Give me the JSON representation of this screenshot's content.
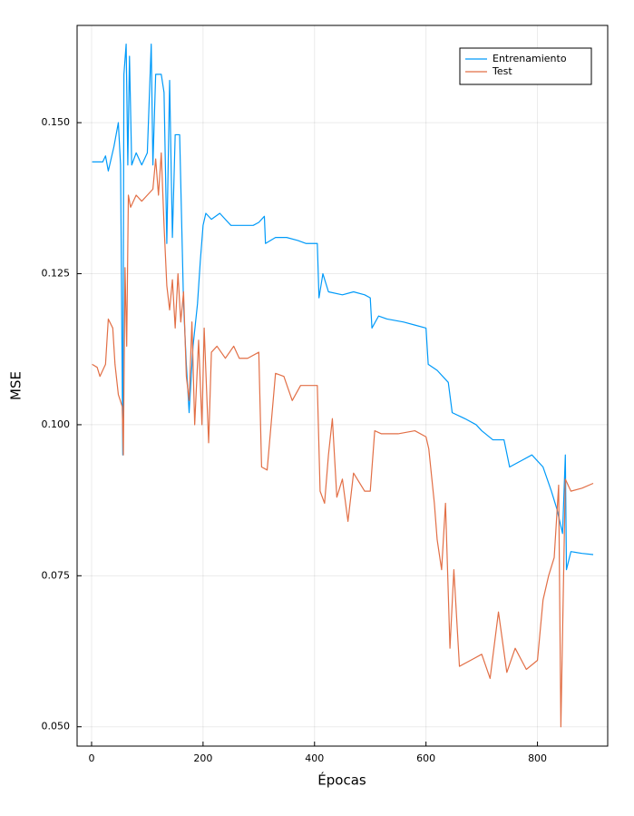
{
  "chart_data": {
    "type": "line",
    "xlabel": "Épocas",
    "ylabel": "MSE",
    "xlim": [
      -26,
      926
    ],
    "ylim": [
      0.0468,
      0.1661
    ],
    "xticks": [
      0,
      200,
      400,
      600,
      800
    ],
    "yticks": [
      {
        "value": 0.05,
        "label": "0.050"
      },
      0.075,
      {
        "value": 0.1,
        "label": "0.100"
      },
      0.125,
      {
        "value": 0.15,
        "label": "0.150"
      }
    ],
    "grid": true,
    "legend": "top-right",
    "series": [
      {
        "name": "Entrenamiento",
        "color": "#009af9",
        "x": [
          1,
          20,
          25,
          30,
          40,
          48,
          52,
          56,
          58,
          62,
          65,
          68,
          72,
          80,
          90,
          100,
          107,
          110,
          115,
          125,
          130,
          135,
          140,
          145,
          150,
          158,
          165,
          170,
          175,
          182,
          190,
          195,
          200,
          205,
          215,
          230,
          250,
          270,
          290,
          300,
          310,
          312,
          330,
          350,
          370,
          385,
          405,
          408,
          415,
          425,
          450,
          470,
          490,
          500,
          503,
          515,
          530,
          560,
          580,
          600,
          604,
          620,
          640,
          647,
          670,
          690,
          700,
          720,
          740,
          750,
          770,
          790,
          810,
          825,
          835,
          845,
          850,
          852,
          860,
          880,
          900
        ],
        "values": [
          0.1435,
          0.1435,
          0.1445,
          0.142,
          0.146,
          0.15,
          0.143,
          0.095,
          0.158,
          0.163,
          0.143,
          0.161,
          0.143,
          0.145,
          0.143,
          0.145,
          0.163,
          0.143,
          0.158,
          0.158,
          0.155,
          0.13,
          0.157,
          0.131,
          0.148,
          0.148,
          0.12,
          0.11,
          0.102,
          0.113,
          0.12,
          0.127,
          0.133,
          0.135,
          0.134,
          0.135,
          0.133,
          0.133,
          0.133,
          0.1335,
          0.1345,
          0.13,
          0.131,
          0.131,
          0.1305,
          0.13,
          0.13,
          0.121,
          0.125,
          0.122,
          0.1215,
          0.122,
          0.1215,
          0.121,
          0.116,
          0.118,
          0.1175,
          0.117,
          0.1165,
          0.116,
          0.11,
          0.109,
          0.107,
          0.102,
          0.101,
          0.1,
          0.099,
          0.0975,
          0.0975,
          0.093,
          0.094,
          0.095,
          0.093,
          0.089,
          0.086,
          0.082,
          0.095,
          0.076,
          0.079,
          0.0787,
          0.0785
        ]
      },
      {
        "name": "Test",
        "color": "#e26f46",
        "x": [
          1,
          10,
          15,
          25,
          30,
          38,
          42,
          48,
          55,
          57,
          60,
          63,
          66,
          70,
          80,
          90,
          100,
          110,
          115,
          120,
          125,
          130,
          135,
          140,
          145,
          150,
          155,
          160,
          165,
          170,
          175,
          180,
          185,
          192,
          198,
          202,
          210,
          215,
          225,
          240,
          255,
          265,
          280,
          300,
          305,
          315,
          330,
          345,
          360,
          375,
          395,
          405,
          410,
          418,
          425,
          432,
          440,
          450,
          460,
          470,
          490,
          500,
          508,
          520,
          550,
          580,
          600,
          605,
          615,
          620,
          628,
          635,
          643,
          650,
          660,
          680,
          700,
          715,
          730,
          745,
          760,
          780,
          800,
          810,
          820,
          830,
          838,
          842,
          850,
          860,
          880,
          900
        ],
        "values": [
          0.11,
          0.1095,
          0.108,
          0.11,
          0.1175,
          0.116,
          0.11,
          0.105,
          0.103,
          0.095,
          0.126,
          0.113,
          0.138,
          0.136,
          0.138,
          0.137,
          0.138,
          0.139,
          0.144,
          0.138,
          0.145,
          0.133,
          0.123,
          0.119,
          0.124,
          0.116,
          0.125,
          0.117,
          0.122,
          0.108,
          0.104,
          0.117,
          0.1,
          0.114,
          0.1,
          0.116,
          0.097,
          0.112,
          0.113,
          0.111,
          0.113,
          0.111,
          0.111,
          0.112,
          0.093,
          0.0925,
          0.1085,
          0.108,
          0.104,
          0.1065,
          0.1065,
          0.1065,
          0.089,
          0.087,
          0.095,
          0.101,
          0.088,
          0.091,
          0.084,
          0.092,
          0.089,
          0.089,
          0.099,
          0.0985,
          0.0985,
          0.099,
          0.098,
          0.096,
          0.087,
          0.081,
          0.076,
          0.087,
          0.063,
          0.076,
          0.06,
          0.061,
          0.062,
          0.058,
          0.069,
          0.059,
          0.063,
          0.0595,
          0.061,
          0.071,
          0.075,
          0.078,
          0.09,
          0.05,
          0.091,
          0.089,
          0.0895,
          0.0903
        ]
      }
    ]
  }
}
